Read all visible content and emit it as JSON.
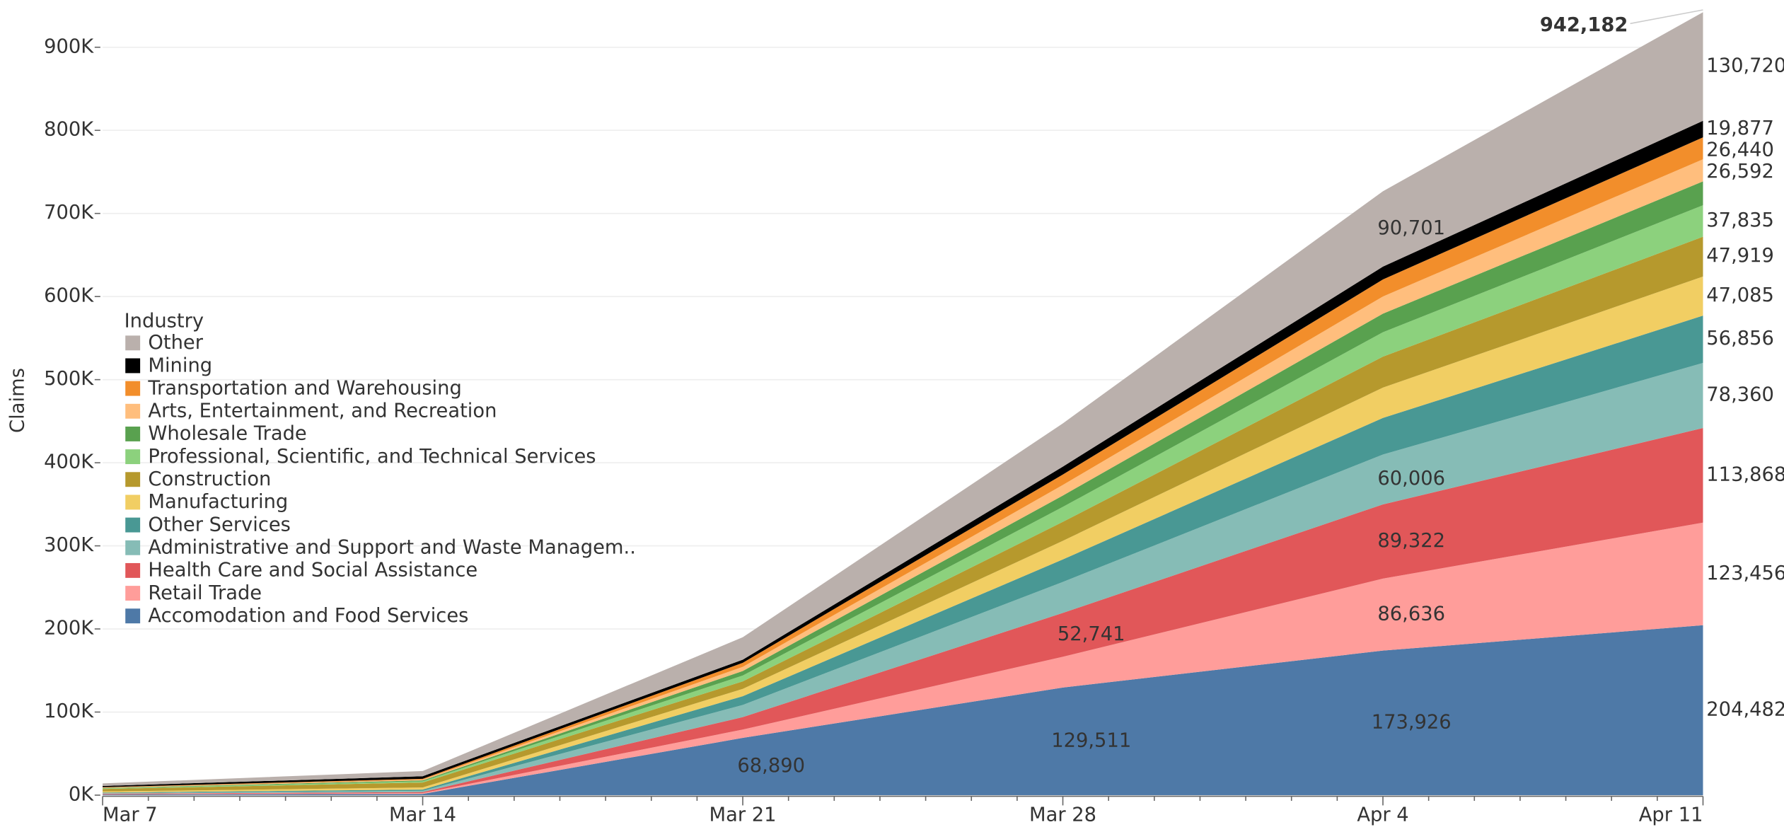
{
  "chart_data": {
    "type": "stacked_area",
    "y_label": "Claims",
    "legend_title": "Industry",
    "legend": "left",
    "x": [
      "Mar 7",
      "Mar 14",
      "Mar 21",
      "Mar 28",
      "Apr 4",
      "Apr 11"
    ],
    "ylim": [
      0,
      950000
    ],
    "yticks": [
      {
        "value": 0,
        "label": "0K"
      },
      {
        "value": 100000,
        "label": "100K"
      },
      {
        "value": 200000,
        "label": "200K"
      },
      {
        "value": 300000,
        "label": "300K"
      },
      {
        "value": 400000,
        "label": "400K"
      },
      {
        "value": 500000,
        "label": "500K"
      },
      {
        "value": 600000,
        "label": "600K"
      },
      {
        "value": 700000,
        "label": "700K"
      },
      {
        "value": 800000,
        "label": "800K"
      },
      {
        "value": 900000,
        "label": "900K"
      }
    ],
    "grid": true,
    "total": 942182,
    "total_label": "942,182",
    "series": [
      {
        "name": "Accomodation and Food Services",
        "color": "#4e79a7",
        "values": [
          700,
          1500,
          68890,
          129511,
          173926,
          204482
        ],
        "value_labels": [
          null,
          null,
          "68,890",
          "129,511",
          "173,926",
          "204,482"
        ]
      },
      {
        "name": "Retail Trade",
        "color": "#ff9d9a",
        "values": [
          500,
          1000,
          10000,
          37000,
          86636,
          123456
        ],
        "value_labels": [
          null,
          null,
          null,
          null,
          "86,636",
          "123,456"
        ]
      },
      {
        "name": "Health Care and Social Assistance",
        "color": "#e15759",
        "values": [
          600,
          1200,
          15000,
          52741,
          89322,
          113868
        ],
        "value_labels": [
          null,
          null,
          null,
          "52,741",
          "89,322",
          "113,868"
        ]
      },
      {
        "name": "Administrative and Support and Waste Managem..",
        "color": "#86bcb6",
        "values": [
          700,
          1500,
          14600,
          37300,
          60006,
          78360
        ],
        "value_labels": [
          null,
          null,
          null,
          null,
          "60,006",
          "78,360"
        ]
      },
      {
        "name": "Other Services",
        "color": "#499894",
        "values": [
          700,
          1500,
          10600,
          27100,
          44000,
          56856
        ],
        "value_labels": [
          null,
          null,
          null,
          null,
          null,
          "56,856"
        ]
      },
      {
        "name": "Manufacturing",
        "color": "#f1ce63",
        "values": [
          1200,
          2500,
          8800,
          22400,
          36600,
          47085
        ],
        "value_labels": [
          null,
          null,
          null,
          null,
          null,
          "47,085"
        ]
      },
      {
        "name": "Construction",
        "color": "#b6992d",
        "values": [
          3000,
          6000,
          9000,
          22800,
          37200,
          47919
        ],
        "value_labels": [
          null,
          null,
          null,
          null,
          null,
          "47,919"
        ]
      },
      {
        "name": "Professional, Scientific, and Technical Services",
        "color": "#8cd17d",
        "values": [
          700,
          1500,
          7100,
          18000,
          29400,
          37835
        ],
        "value_labels": [
          null,
          null,
          null,
          null,
          null,
          "37,835"
        ]
      },
      {
        "name": "Wholesale Trade",
        "color": "#59a14f",
        "values": [
          500,
          1000,
          5400,
          13700,
          22300,
          28692
        ]
      },
      {
        "name": "Arts, Entertainment, and Recreation",
        "color": "#ffbe7d",
        "values": [
          500,
          1000,
          5000,
          12700,
          20700,
          26592
        ],
        "value_labels": [
          null,
          null,
          null,
          null,
          null,
          "26,592"
        ]
      },
      {
        "name": "Transportation and Warehousing",
        "color": "#f28e2b",
        "values": [
          500,
          1000,
          4900,
          12600,
          20500,
          26440
        ],
        "value_labels": [
          null,
          null,
          null,
          null,
          null,
          "26,440"
        ]
      },
      {
        "name": "Mining",
        "color": "#000000",
        "values": [
          1500,
          3000,
          3700,
          9500,
          15400,
          19877
        ],
        "value_labels": [
          null,
          null,
          null,
          null,
          null,
          "19,877"
        ]
      },
      {
        "name": "Other",
        "color": "#bab0ac",
        "values": [
          3000,
          6300,
          27000,
          52000,
          90701,
          130720
        ],
        "value_labels": [
          null,
          null,
          null,
          null,
          "90,701",
          "130,720"
        ]
      }
    ]
  }
}
